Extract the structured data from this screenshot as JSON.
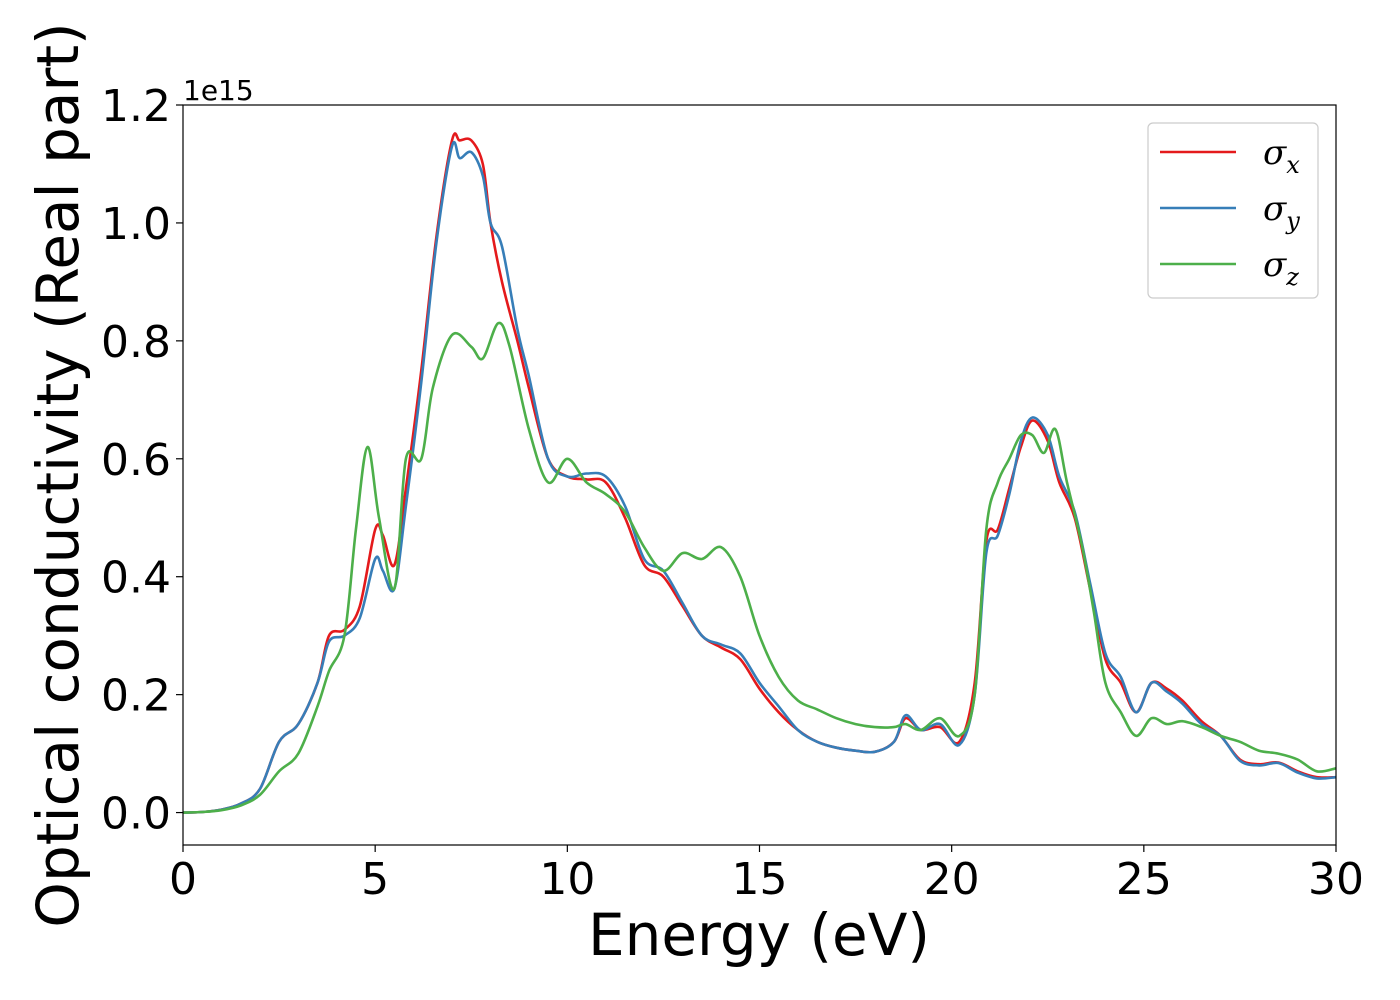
{
  "chart_data": {
    "type": "line",
    "xlabel": "Energy (eV)",
    "ylabel": "Optical conductivity (Real part)",
    "offset_text": "1e15",
    "xlim": [
      0,
      30
    ],
    "ylim": [
      -0.055,
      1.2
    ],
    "xticks": [
      0,
      5,
      10,
      15,
      20,
      25,
      30
    ],
    "yticks": [
      0.0,
      0.2,
      0.4,
      0.6,
      0.8,
      1.0,
      1.2
    ],
    "xtick_labels": [
      "0",
      "5",
      "10",
      "15",
      "20",
      "25",
      "30"
    ],
    "ytick_labels": [
      "0.0",
      "0.2",
      "0.4",
      "0.6",
      "0.8",
      "1.0",
      "1.2"
    ],
    "grid": false,
    "legend": "top-right",
    "series": [
      {
        "name": "σx",
        "legend_base": "σ",
        "legend_sub": "x",
        "color": "#e41a1c",
        "x": [
          0,
          0.5,
          1,
          1.5,
          2,
          2.5,
          3,
          3.5,
          3.8,
          4.2,
          4.6,
          5,
          5.2,
          5.5,
          5.8,
          6.2,
          6.6,
          7,
          7.2,
          7.5,
          7.8,
          8,
          8.3,
          8.7,
          9,
          9.5,
          10,
          10.5,
          11,
          11.5,
          12,
          12.5,
          13,
          13.5,
          14,
          14.5,
          15,
          15.5,
          16,
          16.5,
          17,
          17.5,
          18,
          18.5,
          18.8,
          19.2,
          19.7,
          20.2,
          20.6,
          20.9,
          21.2,
          21.5,
          21.8,
          22.1,
          22.5,
          22.8,
          23.2,
          23.6,
          24,
          24.4,
          24.8,
          25.2,
          25.6,
          26,
          26.5,
          27,
          27.5,
          28,
          28.5,
          29,
          29.5,
          30
        ],
        "y": [
          0,
          0.001,
          0.005,
          0.015,
          0.04,
          0.12,
          0.15,
          0.22,
          0.3,
          0.31,
          0.35,
          0.48,
          0.47,
          0.42,
          0.55,
          0.75,
          0.98,
          1.14,
          1.14,
          1.14,
          1.1,
          1.0,
          0.9,
          0.8,
          0.72,
          0.6,
          0.57,
          0.565,
          0.56,
          0.5,
          0.42,
          0.4,
          0.35,
          0.3,
          0.28,
          0.26,
          0.21,
          0.17,
          0.14,
          0.12,
          0.11,
          0.105,
          0.103,
          0.12,
          0.16,
          0.14,
          0.145,
          0.12,
          0.22,
          0.46,
          0.48,
          0.55,
          0.62,
          0.665,
          0.63,
          0.56,
          0.5,
          0.38,
          0.26,
          0.22,
          0.17,
          0.22,
          0.21,
          0.19,
          0.155,
          0.13,
          0.09,
          0.082,
          0.085,
          0.07,
          0.06,
          0.06
        ]
      },
      {
        "name": "σy",
        "legend_base": "σ",
        "legend_sub": "y",
        "color": "#377eb8",
        "x": [
          0,
          0.5,
          1,
          1.5,
          2,
          2.5,
          3,
          3.5,
          3.8,
          4.2,
          4.6,
          5,
          5.2,
          5.5,
          5.8,
          6.2,
          6.6,
          7,
          7.2,
          7.5,
          7.8,
          8,
          8.3,
          8.7,
          9,
          9.5,
          10,
          10.5,
          11,
          11.5,
          12,
          12.5,
          13,
          13.5,
          14,
          14.5,
          15,
          15.5,
          16,
          16.5,
          17,
          17.5,
          18,
          18.5,
          18.8,
          19.2,
          19.7,
          20.2,
          20.6,
          20.9,
          21.2,
          21.5,
          21.8,
          22.1,
          22.5,
          22.8,
          23.2,
          23.6,
          24,
          24.4,
          24.8,
          25.2,
          25.6,
          26,
          26.5,
          27,
          27.5,
          28,
          28.5,
          29,
          29.5,
          30
        ],
        "y": [
          0,
          0.001,
          0.005,
          0.015,
          0.04,
          0.12,
          0.15,
          0.22,
          0.29,
          0.3,
          0.33,
          0.43,
          0.41,
          0.38,
          0.52,
          0.73,
          0.97,
          1.13,
          1.11,
          1.12,
          1.08,
          1.0,
          0.96,
          0.82,
          0.74,
          0.6,
          0.57,
          0.575,
          0.57,
          0.52,
          0.43,
          0.41,
          0.355,
          0.3,
          0.285,
          0.27,
          0.22,
          0.18,
          0.14,
          0.12,
          0.11,
          0.105,
          0.103,
          0.12,
          0.165,
          0.14,
          0.15,
          0.115,
          0.2,
          0.44,
          0.47,
          0.54,
          0.63,
          0.67,
          0.64,
          0.57,
          0.51,
          0.39,
          0.27,
          0.23,
          0.17,
          0.22,
          0.205,
          0.185,
          0.15,
          0.13,
          0.088,
          0.08,
          0.084,
          0.068,
          0.058,
          0.06
        ]
      },
      {
        "name": "σz",
        "legend_base": "σ",
        "legend_sub": "z",
        "color": "#4daf4a",
        "x": [
          0,
          0.5,
          1,
          1.5,
          2,
          2.5,
          3,
          3.5,
          3.8,
          4.2,
          4.5,
          4.8,
          5.1,
          5.5,
          5.8,
          6.2,
          6.5,
          7,
          7.5,
          7.8,
          8.2,
          8.5,
          9,
          9.5,
          10,
          10.5,
          11,
          11.5,
          12,
          12.5,
          13,
          13.5,
          14,
          14.5,
          15,
          15.5,
          16,
          16.5,
          17,
          17.5,
          18,
          18.5,
          18.8,
          19.2,
          19.7,
          20.2,
          20.6,
          20.9,
          21.2,
          21.5,
          21.8,
          22.1,
          22.4,
          22.7,
          23,
          23.4,
          23.7,
          24,
          24.4,
          24.8,
          25.2,
          25.6,
          26,
          26.5,
          27,
          27.5,
          28,
          28.5,
          29,
          29.5,
          30
        ],
        "y": [
          0,
          0.001,
          0.004,
          0.012,
          0.03,
          0.07,
          0.1,
          0.18,
          0.24,
          0.3,
          0.48,
          0.62,
          0.5,
          0.38,
          0.6,
          0.6,
          0.72,
          0.81,
          0.79,
          0.77,
          0.83,
          0.79,
          0.65,
          0.56,
          0.6,
          0.56,
          0.54,
          0.51,
          0.45,
          0.41,
          0.44,
          0.43,
          0.45,
          0.4,
          0.3,
          0.23,
          0.19,
          0.175,
          0.16,
          0.15,
          0.145,
          0.145,
          0.15,
          0.14,
          0.16,
          0.13,
          0.2,
          0.48,
          0.56,
          0.6,
          0.64,
          0.64,
          0.61,
          0.65,
          0.56,
          0.45,
          0.34,
          0.22,
          0.17,
          0.13,
          0.16,
          0.15,
          0.155,
          0.145,
          0.13,
          0.12,
          0.105,
          0.1,
          0.09,
          0.07,
          0.075
        ]
      }
    ]
  }
}
